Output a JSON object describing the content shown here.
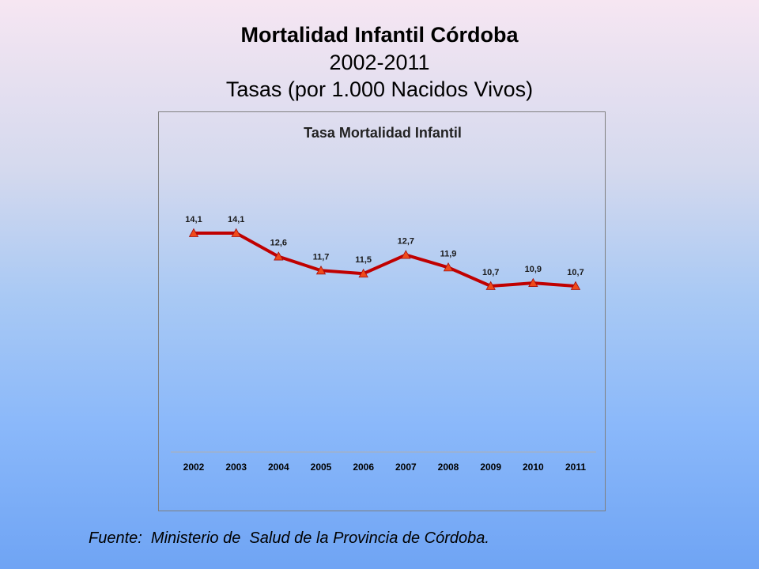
{
  "slide": {
    "title": "Mortalidad Infantil Córdoba",
    "subtitle": "2002-2011",
    "subtitle2": "Tasas (por 1.000 Nacidos Vivos)",
    "source": "Fuente:  Ministerio de  Salud de la Provincia de Córdoba."
  },
  "chart_data": {
    "type": "line",
    "title": "Tasa Mortalidad Infantil",
    "xlabel": "",
    "ylabel": "",
    "categories": [
      "2002",
      "2003",
      "2004",
      "2005",
      "2006",
      "2007",
      "2008",
      "2009",
      "2010",
      "2011"
    ],
    "series": [
      {
        "values": [
          14.1,
          14.1,
          12.6,
          11.7,
          11.5,
          12.7,
          11.9,
          10.7,
          10.9,
          10.7
        ],
        "labels": [
          "14,1",
          "14,1",
          "12,6",
          "11,7",
          "11,5",
          "12,7",
          "11,9",
          "10,7",
          "10,9",
          "10,7"
        ],
        "color": "#c00000",
        "marker": "triangle",
        "marker_color": "#f04a1a"
      }
    ],
    "grid": false,
    "legend": "none"
  }
}
